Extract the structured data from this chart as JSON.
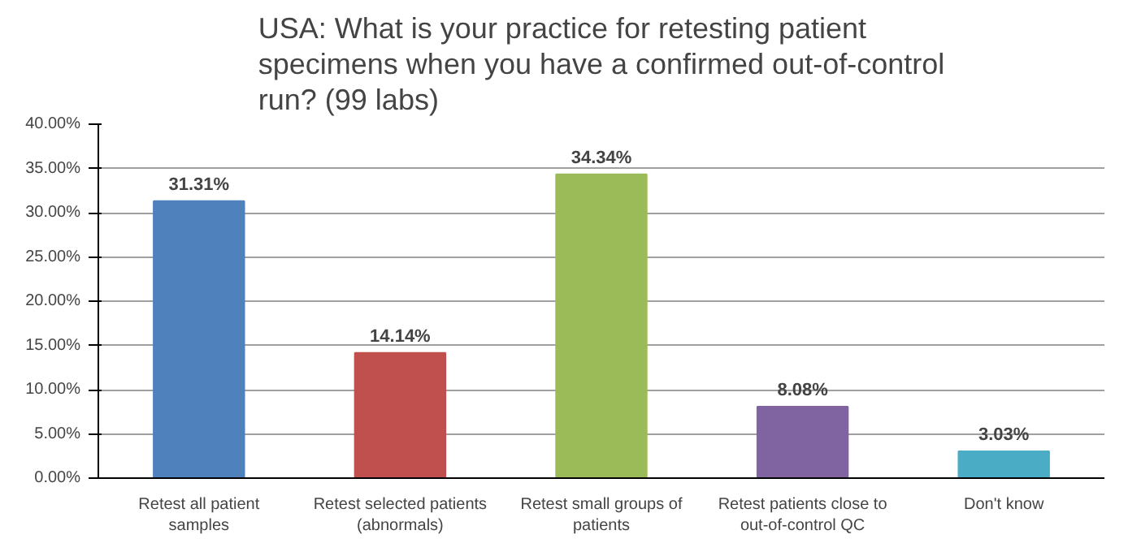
{
  "chart_data": {
    "type": "bar",
    "title": "USA: What is your practice for retesting patient specimens when you have a confirmed out-of-control run? (99 labs)",
    "categories": [
      "Retest all patient samples",
      "Retest selected patients (abnormals)",
      "Retest small groups of patients",
      "Retest patients close to out-of-control QC",
      "Don't know"
    ],
    "values": [
      31.31,
      14.14,
      34.34,
      8.08,
      3.03
    ],
    "colors": [
      "#4f81bd",
      "#c0504d",
      "#9bbb59",
      "#8064a2",
      "#4bacc6"
    ],
    "value_labels": [
      "31.31%",
      "14.14%",
      "34.34%",
      "8.08%",
      "3.03%"
    ],
    "ylim": [
      0,
      40
    ],
    "yticks": [
      {
        "value": 0,
        "label": "0.00%"
      },
      {
        "value": 5,
        "label": "5.00%"
      },
      {
        "value": 10,
        "label": "10.00%"
      },
      {
        "value": 15,
        "label": "15.00%"
      },
      {
        "value": 20,
        "label": "20.00%"
      },
      {
        "value": 25,
        "label": "25.00%"
      },
      {
        "value": 30,
        "label": "30.00%"
      },
      {
        "value": 35,
        "label": "35.00%"
      },
      {
        "value": 40,
        "label": "40.00%"
      }
    ],
    "grid": "y"
  }
}
